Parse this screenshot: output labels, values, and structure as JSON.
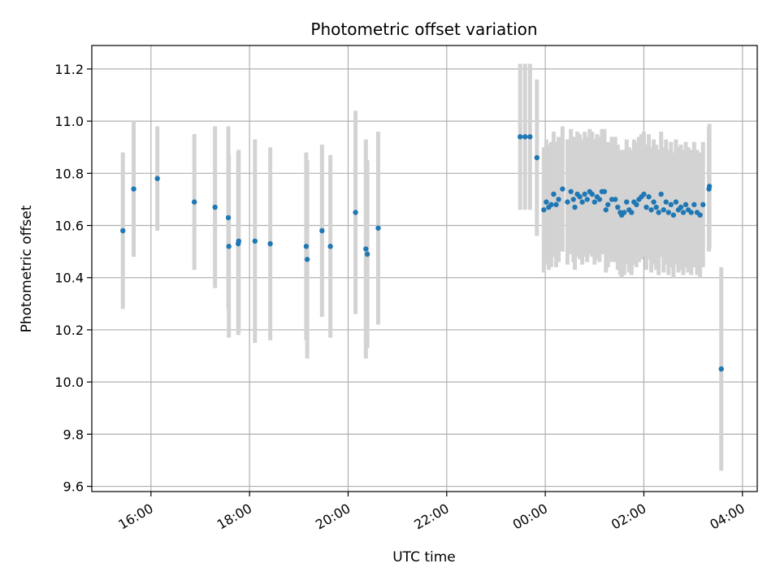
{
  "chart_data": {
    "type": "scatter",
    "title": "Photometric offset variation",
    "xlabel": "UTC time",
    "ylabel": "Photometric offset",
    "x_unit": "hours (UTC), values past 24 continue into the next day",
    "xlim": [
      14.8,
      28.3
    ],
    "ylim": [
      9.58,
      11.29
    ],
    "x_ticks": [
      {
        "value": 16,
        "label": "16:00"
      },
      {
        "value": 18,
        "label": "18:00"
      },
      {
        "value": 20,
        "label": "20:00"
      },
      {
        "value": 22,
        "label": "22:00"
      },
      {
        "value": 24,
        "label": "00:00"
      },
      {
        "value": 26,
        "label": "02:00"
      },
      {
        "value": 28,
        "label": "04:00"
      }
    ],
    "y_ticks": [
      {
        "value": 9.6,
        "label": "9.6"
      },
      {
        "value": 9.8,
        "label": "9.8"
      },
      {
        "value": 10.0,
        "label": "10.0"
      },
      {
        "value": 10.2,
        "label": "10.2"
      },
      {
        "value": 10.4,
        "label": "10.4"
      },
      {
        "value": 10.6,
        "label": "10.6"
      },
      {
        "value": 10.8,
        "label": "10.8"
      },
      {
        "value": 11.0,
        "label": "11.0"
      },
      {
        "value": 11.2,
        "label": "11.2"
      }
    ],
    "grid": true,
    "colors": {
      "point": "#1f77b4",
      "errorbar": "#d3d3d3",
      "grid": "#b0b0b0"
    },
    "points": [
      [
        15.43,
        10.58,
        0.3
      ],
      [
        15.65,
        10.74,
        0.26
      ],
      [
        16.13,
        10.78,
        0.2
      ],
      [
        16.88,
        10.69,
        0.26
      ],
      [
        17.3,
        10.67,
        0.31
      ],
      [
        17.57,
        10.63,
        0.35
      ],
      [
        17.58,
        10.52,
        0.35
      ],
      [
        17.77,
        10.53,
        0.35
      ],
      [
        17.78,
        10.54,
        0.35
      ],
      [
        18.11,
        10.54,
        0.39
      ],
      [
        18.42,
        10.53,
        0.37
      ],
      [
        19.15,
        10.52,
        0.36
      ],
      [
        19.17,
        10.47,
        0.38
      ],
      [
        19.47,
        10.58,
        0.33
      ],
      [
        19.64,
        10.52,
        0.35
      ],
      [
        20.15,
        10.65,
        0.39
      ],
      [
        20.36,
        10.51,
        0.42
      ],
      [
        20.39,
        10.49,
        0.36
      ],
      [
        20.61,
        10.59,
        0.37
      ],
      [
        23.49,
        10.94,
        0.28
      ],
      [
        23.59,
        10.94,
        0.28
      ],
      [
        23.69,
        10.94,
        0.28
      ],
      [
        23.83,
        10.86,
        0.3
      ],
      [
        23.97,
        10.66,
        0.24
      ],
      [
        24.02,
        10.69,
        0.24
      ],
      [
        24.07,
        10.67,
        0.24
      ],
      [
        24.12,
        10.68,
        0.24
      ],
      [
        24.17,
        10.72,
        0.24
      ],
      [
        24.22,
        10.68,
        0.24
      ],
      [
        24.27,
        10.7,
        0.24
      ],
      [
        24.35,
        10.74,
        0.24
      ],
      [
        24.45,
        10.69,
        0.24
      ],
      [
        24.52,
        10.73,
        0.24
      ],
      [
        24.57,
        10.7,
        0.24
      ],
      [
        24.6,
        10.67,
        0.24
      ],
      [
        24.65,
        10.72,
        0.24
      ],
      [
        24.7,
        10.71,
        0.24
      ],
      [
        24.75,
        10.69,
        0.24
      ],
      [
        24.8,
        10.72,
        0.24
      ],
      [
        24.85,
        10.7,
        0.24
      ],
      [
        24.9,
        10.73,
        0.24
      ],
      [
        24.95,
        10.72,
        0.24
      ],
      [
        25.0,
        10.69,
        0.24
      ],
      [
        25.05,
        10.71,
        0.24
      ],
      [
        25.1,
        10.7,
        0.24
      ],
      [
        25.15,
        10.73,
        0.24
      ],
      [
        25.2,
        10.73,
        0.24
      ],
      [
        25.23,
        10.66,
        0.24
      ],
      [
        25.27,
        10.68,
        0.24
      ],
      [
        25.35,
        10.7,
        0.24
      ],
      [
        25.42,
        10.7,
        0.24
      ],
      [
        25.47,
        10.67,
        0.24
      ],
      [
        25.52,
        10.65,
        0.24
      ],
      [
        25.55,
        10.64,
        0.24
      ],
      [
        25.6,
        10.65,
        0.24
      ],
      [
        25.65,
        10.69,
        0.24
      ],
      [
        25.7,
        10.66,
        0.24
      ],
      [
        25.75,
        10.65,
        0.24
      ],
      [
        25.8,
        10.69,
        0.24
      ],
      [
        25.85,
        10.68,
        0.24
      ],
      [
        25.9,
        10.7,
        0.24
      ],
      [
        25.95,
        10.71,
        0.24
      ],
      [
        26.0,
        10.72,
        0.24
      ],
      [
        26.05,
        10.67,
        0.24
      ],
      [
        26.1,
        10.71,
        0.24
      ],
      [
        26.15,
        10.66,
        0.24
      ],
      [
        26.2,
        10.69,
        0.24
      ],
      [
        26.25,
        10.67,
        0.24
      ],
      [
        26.3,
        10.65,
        0.24
      ],
      [
        26.35,
        10.72,
        0.24
      ],
      [
        26.4,
        10.66,
        0.24
      ],
      [
        26.45,
        10.69,
        0.24
      ],
      [
        26.5,
        10.65,
        0.24
      ],
      [
        26.55,
        10.68,
        0.24
      ],
      [
        26.6,
        10.64,
        0.24
      ],
      [
        26.65,
        10.69,
        0.24
      ],
      [
        26.7,
        10.66,
        0.24
      ],
      [
        26.75,
        10.67,
        0.24
      ],
      [
        26.8,
        10.65,
        0.24
      ],
      [
        26.85,
        10.68,
        0.24
      ],
      [
        26.9,
        10.66,
        0.24
      ],
      [
        26.96,
        10.65,
        0.24
      ],
      [
        27.02,
        10.68,
        0.24
      ],
      [
        27.08,
        10.65,
        0.24
      ],
      [
        27.14,
        10.64,
        0.24
      ],
      [
        27.2,
        10.68,
        0.24
      ],
      [
        27.32,
        10.74,
        0.24
      ],
      [
        27.33,
        10.75,
        0.24
      ],
      [
        27.57,
        10.05,
        0.39
      ]
    ]
  }
}
